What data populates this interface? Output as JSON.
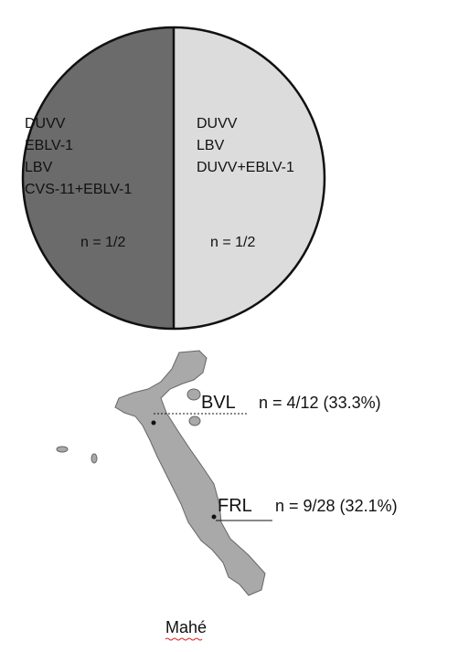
{
  "pie": {
    "left": {
      "lines": [
        "DUVV",
        "EBLV-1",
        "LBV",
        "CVS-11+EBLV-1"
      ],
      "n": "n = 1/2"
    },
    "right": {
      "lines": [
        "DUVV",
        "LBV",
        "DUVV+EBLV-1"
      ],
      "n": "n = 1/2"
    }
  },
  "map": {
    "sites": [
      {
        "label": "BVL",
        "n": "n = 4/12 (33.3%)"
      },
      {
        "label": "FRL",
        "n": "n = 9/28 (32.1%)"
      }
    ],
    "island": "Mahé"
  }
}
